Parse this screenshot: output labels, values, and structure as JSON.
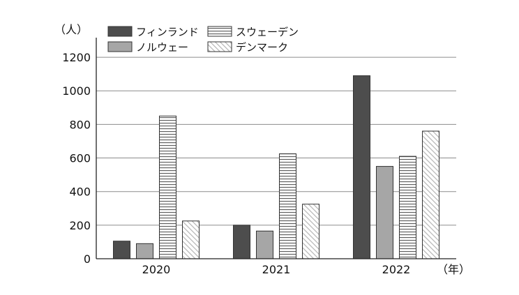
{
  "chart_data": {
    "type": "bar",
    "title": "",
    "ylabel": "（人）",
    "xlabel": "（年）",
    "categories": [
      "2020",
      "2021",
      "2022"
    ],
    "ylim": [
      0,
      1300
    ],
    "yticks": [
      0,
      200,
      400,
      600,
      800,
      1000,
      1200
    ],
    "grid": true,
    "legend_position": "top",
    "series": [
      {
        "name": "フィンランド",
        "values": [
          105,
          200,
          1090
        ],
        "pattern": "solid-dark",
        "color": "#4d4d4d"
      },
      {
        "name": "ノルウェー",
        "values": [
          90,
          165,
          550
        ],
        "pattern": "solid-light",
        "color": "#a6a6a6"
      },
      {
        "name": "スウェーデン",
        "values": [
          850,
          625,
          610
        ],
        "pattern": "horizontal-stripes",
        "color": "#555555"
      },
      {
        "name": "デンマーク",
        "values": [
          225,
          325,
          760
        ],
        "pattern": "diagonal-hatch",
        "color": "#bdbdbd"
      }
    ]
  }
}
